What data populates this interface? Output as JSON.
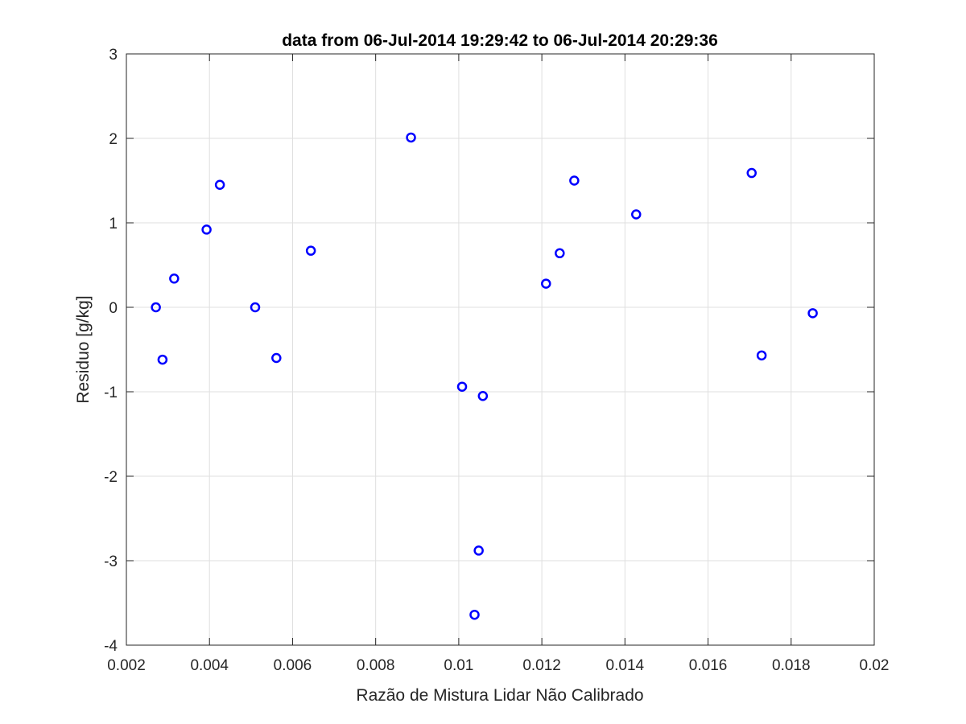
{
  "chart_data": {
    "type": "scatter",
    "title": "data from 06-Jul-2014 19:29:42 to 06-Jul-2014 20:29:36",
    "xlabel": "Razão de Mistura Lidar Não Calibrado",
    "ylabel": "Residuo [g/kg]",
    "xlim": [
      0.002,
      0.02
    ],
    "ylim": [
      -4,
      3
    ],
    "xticks": [
      0.002,
      0.004,
      0.006,
      0.008,
      0.01,
      0.012,
      0.014,
      0.016,
      0.018,
      0.02
    ],
    "xtick_labels": [
      "0.002",
      "0.004",
      "0.006",
      "0.008",
      "0.01",
      "0.012",
      "0.014",
      "0.016",
      "0.018",
      "0.02"
    ],
    "yticks": [
      -4,
      -3,
      -2,
      -1,
      0,
      1,
      2,
      3
    ],
    "ytick_labels": [
      "-4",
      "-3",
      "-2",
      "-1",
      "0",
      "1",
      "2",
      "3"
    ],
    "grid": true,
    "marker": "o",
    "marker_color": "#0000ff",
    "series": [
      {
        "x": [
          0.00271,
          0.00287,
          0.00315,
          0.00393,
          0.00425,
          0.0051,
          0.00561,
          0.00644,
          0.00885,
          0.01008,
          0.01058,
          0.01048,
          0.01038,
          0.0121,
          0.01243,
          0.01278,
          0.01427,
          0.01705,
          0.01729,
          0.01852
        ],
        "y": [
          0.0,
          -0.62,
          0.34,
          0.92,
          1.45,
          0.0,
          -0.6,
          0.67,
          2.01,
          -0.94,
          -1.05,
          -2.88,
          -3.64,
          0.28,
          0.64,
          1.5,
          1.1,
          1.59,
          -0.57,
          -0.07
        ]
      }
    ]
  }
}
